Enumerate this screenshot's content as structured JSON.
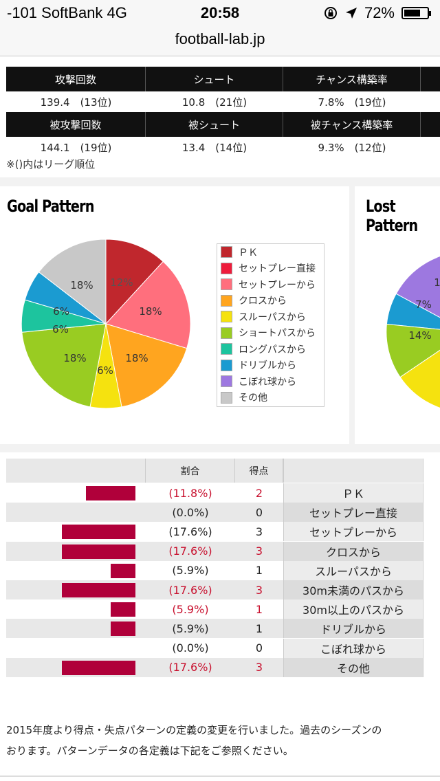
{
  "status": {
    "carrier": "-101 SoftBank   4G",
    "time": "20:58",
    "battery": "72%",
    "battery_level": 0.72
  },
  "browser": {
    "url": "football-lab.jp"
  },
  "stats": {
    "headers1": [
      "攻撃回数",
      "シュート",
      "チャンス構築率"
    ],
    "values1": [
      "139.4　(13位)",
      "10.8　(21位)",
      "7.8%　(19位)"
    ],
    "headers2": [
      "被攻撃回数",
      "被シュート",
      "被チャンス構築率"
    ],
    "values2": [
      "144.1　(19位)",
      "13.4　(14位)",
      "9.3%　(12位)"
    ],
    "note": "※()内はリーグ順位"
  },
  "goal_pattern": {
    "title": "Goal Pattern",
    "labels": [
      "12%",
      "18%",
      "18%",
      "6%",
      "18%",
      "6%",
      "6%",
      "18%"
    ]
  },
  "lost_pattern": {
    "title": "Lost Pattern",
    "labels": [
      "1",
      "7%",
      "14%"
    ]
  },
  "legend": [
    {
      "label": "ＰＫ",
      "color": "#c0272d"
    },
    {
      "label": "セットプレー直接",
      "color": "#ee1c3c"
    },
    {
      "label": "セットプレーから",
      "color": "#ff6f7d"
    },
    {
      "label": "クロスから",
      "color": "#ffa51f"
    },
    {
      "label": "スルーパスから",
      "color": "#f5e20f"
    },
    {
      "label": "ショートパスから",
      "color": "#99cc22"
    },
    {
      "label": "ロングパスから",
      "color": "#1dc49e"
    },
    {
      "label": "ドリブルから",
      "color": "#1b9bd1"
    },
    {
      "label": "こぼれ球から",
      "color": "#9d78e0"
    },
    {
      "label": "その他",
      "color": "#c8c8c8"
    }
  ],
  "goal_table": {
    "headers": [
      "割合",
      "得点"
    ],
    "rows": [
      {
        "pct": "(11.8%)",
        "count": "2",
        "label": "ＰＫ",
        "value": 11.8,
        "highlight": true
      },
      {
        "pct": "(0.0%)",
        "count": "0",
        "label": "セットプレー直接",
        "value": 0,
        "highlight": false
      },
      {
        "pct": "(17.6%)",
        "count": "3",
        "label": "セットプレーから",
        "value": 17.6,
        "highlight": false
      },
      {
        "pct": "(17.6%)",
        "count": "3",
        "label": "クロスから",
        "value": 17.6,
        "highlight": true
      },
      {
        "pct": "(5.9%)",
        "count": "1",
        "label": "スルーパスから",
        "value": 5.9,
        "highlight": false
      },
      {
        "pct": "(17.6%)",
        "count": "3",
        "label": "30m未満のパスから",
        "value": 17.6,
        "highlight": true
      },
      {
        "pct": "(5.9%)",
        "count": "1",
        "label": "30m以上のパスから",
        "value": 5.9,
        "highlight": true
      },
      {
        "pct": "(5.9%)",
        "count": "1",
        "label": "ドリブルから",
        "value": 5.9,
        "highlight": false
      },
      {
        "pct": "(0.0%)",
        "count": "0",
        "label": "こぼれ球から",
        "value": 0,
        "highlight": false
      },
      {
        "pct": "(17.6%)",
        "count": "3",
        "label": "その他",
        "value": 17.6,
        "highlight": true
      }
    ]
  },
  "footer_note": {
    "line1": "2015年度より得点・失点パターンの定義の変更を行いました。過去のシーズンの",
    "line2": "おります。パターンデータの各定義は下記をご参照ください。"
  }
}
